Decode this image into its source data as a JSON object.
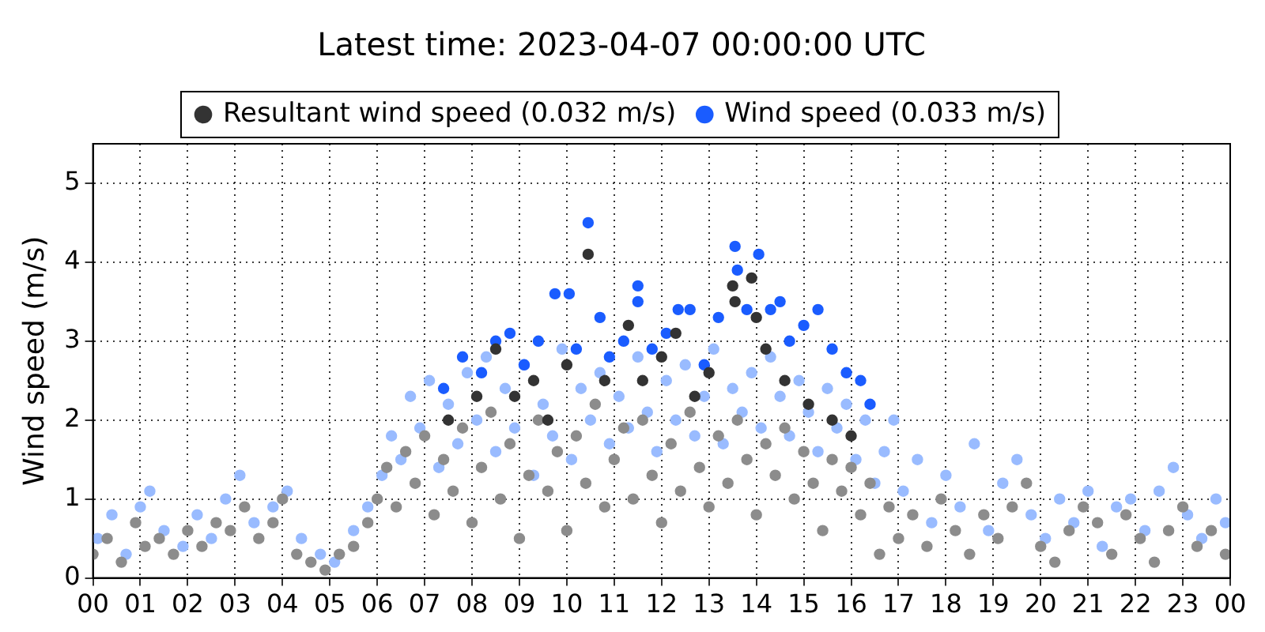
{
  "chart_data": {
    "type": "scatter",
    "title": "Latest time: 2023-04-07 00:00:00 UTC",
    "ylabel": "Wind speed (m/s)",
    "xlim": [
      0,
      24
    ],
    "xticks": [
      {
        "value": 0,
        "label": "00"
      },
      {
        "value": 1,
        "label": "01"
      },
      {
        "value": 2,
        "label": "02"
      },
      {
        "value": 3,
        "label": "03"
      },
      {
        "value": 4,
        "label": "04"
      },
      {
        "value": 5,
        "label": "05"
      },
      {
        "value": 6,
        "label": "06"
      },
      {
        "value": 7,
        "label": "07"
      },
      {
        "value": 8,
        "label": "08"
      },
      {
        "value": 9,
        "label": "09"
      },
      {
        "value": 10,
        "label": "10"
      },
      {
        "value": 11,
        "label": "11"
      },
      {
        "value": 12,
        "label": "12"
      },
      {
        "value": 13,
        "label": "13"
      },
      {
        "value": 14,
        "label": "14"
      },
      {
        "value": 15,
        "label": "15"
      },
      {
        "value": 16,
        "label": "16"
      },
      {
        "value": 17,
        "label": "17"
      },
      {
        "value": 18,
        "label": "18"
      },
      {
        "value": 19,
        "label": "19"
      },
      {
        "value": 20,
        "label": "20"
      },
      {
        "value": 21,
        "label": "21"
      },
      {
        "value": 22,
        "label": "22"
      },
      {
        "value": 23,
        "label": "23"
      },
      {
        "value": 24,
        "label": "00"
      }
    ],
    "ylim": [
      0,
      5.5
    ],
    "yticks": [
      0,
      1,
      2,
      3,
      4,
      5
    ],
    "grid": true,
    "legend": "top",
    "marker": "circle",
    "series": [
      {
        "color": "#99bbff",
        "x": [
          0.1,
          0.4,
          0.7,
          1.0,
          1.2,
          1.5,
          1.9,
          2.2,
          2.5,
          2.8,
          3.1,
          3.4,
          3.8,
          4.1,
          4.4,
          4.8,
          5.1,
          5.5,
          5.8,
          6.1,
          6.3,
          6.5,
          6.7,
          6.9,
          7.1,
          7.3,
          7.5,
          7.7,
          7.9,
          8.1,
          8.3,
          8.5,
          8.7,
          8.9,
          9.1,
          9.3,
          9.5,
          9.7,
          9.9,
          10.1,
          10.3,
          10.5,
          10.7,
          10.9,
          11.1,
          11.3,
          11.5,
          11.7,
          11.9,
          12.1,
          12.3,
          12.5,
          12.7,
          12.9,
          13.1,
          13.3,
          13.5,
          13.7,
          13.9,
          14.1,
          14.3,
          14.5,
          14.7,
          14.9,
          15.1,
          15.3,
          15.5,
          15.7,
          15.9,
          16.1,
          16.3,
          16.5,
          16.7,
          16.9,
          17.1,
          17.4,
          17.7,
          18.0,
          18.3,
          18.6,
          18.9,
          19.2,
          19.5,
          19.8,
          20.1,
          20.4,
          20.7,
          21.0,
          21.3,
          21.6,
          21.9,
          22.2,
          22.5,
          22.8,
          23.1,
          23.4,
          23.7,
          23.9
        ],
        "values": [
          0.5,
          0.8,
          0.3,
          0.9,
          1.1,
          0.6,
          0.4,
          0.8,
          0.5,
          1.0,
          1.3,
          0.7,
          0.9,
          1.1,
          0.5,
          0.3,
          0.2,
          0.6,
          0.9,
          1.3,
          1.8,
          1.5,
          2.3,
          1.9,
          2.5,
          1.4,
          2.2,
          1.7,
          2.6,
          2.0,
          2.8,
          1.6,
          2.4,
          1.9,
          2.7,
          1.3,
          2.2,
          1.8,
          2.9,
          1.5,
          2.4,
          2.0,
          2.6,
          1.7,
          2.3,
          1.9,
          2.8,
          2.1,
          1.6,
          2.5,
          2.0,
          2.7,
          1.8,
          2.3,
          2.9,
          1.7,
          2.4,
          2.1,
          2.6,
          1.9,
          2.8,
          2.3,
          1.8,
          2.5,
          2.1,
          1.6,
          2.4,
          1.9,
          2.2,
          1.5,
          2.0,
          1.2,
          1.6,
          2.0,
          1.1,
          1.5,
          0.7,
          1.3,
          0.9,
          1.7,
          0.6,
          1.2,
          1.5,
          0.8,
          0.5,
          1.0,
          0.7,
          1.1,
          0.4,
          0.9,
          1.0,
          0.6,
          1.1,
          1.4,
          0.8,
          0.5,
          1.0,
          0.7
        ]
      },
      {
        "color": "#8c8c8c",
        "x": [
          0.0,
          0.3,
          0.6,
          0.9,
          1.1,
          1.4,
          1.7,
          2.0,
          2.3,
          2.6,
          2.9,
          3.2,
          3.5,
          3.8,
          4.0,
          4.3,
          4.6,
          4.9,
          5.2,
          5.5,
          5.8,
          6.0,
          6.2,
          6.4,
          6.6,
          6.8,
          7.0,
          7.2,
          7.4,
          7.6,
          7.8,
          8.0,
          8.2,
          8.4,
          8.6,
          8.8,
          9.0,
          9.2,
          9.4,
          9.6,
          9.8,
          10.0,
          10.2,
          10.4,
          10.6,
          10.8,
          11.0,
          11.2,
          11.4,
          11.6,
          11.8,
          12.0,
          12.2,
          12.4,
          12.6,
          12.8,
          13.0,
          13.2,
          13.4,
          13.6,
          13.8,
          14.0,
          14.2,
          14.4,
          14.6,
          14.8,
          15.0,
          15.2,
          15.4,
          15.6,
          15.8,
          16.0,
          16.2,
          16.4,
          16.6,
          16.8,
          17.0,
          17.3,
          17.6,
          17.9,
          18.2,
          18.5,
          18.8,
          19.1,
          19.4,
          19.7,
          20.0,
          20.3,
          20.6,
          20.9,
          21.2,
          21.5,
          21.8,
          22.1,
          22.4,
          22.7,
          23.0,
          23.3,
          23.6,
          23.9
        ],
        "values": [
          0.3,
          0.5,
          0.2,
          0.7,
          0.4,
          0.5,
          0.3,
          0.6,
          0.4,
          0.7,
          0.6,
          0.9,
          0.5,
          0.7,
          1.0,
          0.3,
          0.2,
          0.1,
          0.3,
          0.4,
          0.7,
          1.0,
          1.4,
          0.9,
          1.6,
          1.2,
          1.8,
          0.8,
          1.5,
          1.1,
          1.9,
          0.7,
          1.4,
          2.1,
          1.0,
          1.7,
          0.5,
          1.3,
          2.0,
          1.1,
          1.6,
          0.6,
          1.8,
          1.2,
          2.2,
          0.9,
          1.5,
          1.9,
          1.0,
          2.0,
          1.3,
          0.7,
          1.7,
          1.1,
          2.1,
          1.4,
          0.9,
          1.8,
          1.2,
          2.0,
          1.5,
          0.8,
          1.7,
          1.3,
          1.9,
          1.0,
          1.6,
          1.2,
          0.6,
          1.5,
          1.1,
          1.4,
          0.8,
          1.2,
          0.3,
          0.9,
          0.5,
          0.8,
          0.4,
          1.0,
          0.6,
          0.3,
          0.8,
          0.5,
          0.9,
          1.2,
          0.4,
          0.2,
          0.6,
          0.9,
          0.7,
          0.3,
          0.8,
          0.5,
          0.2,
          0.6,
          0.9,
          0.4,
          0.6,
          0.3
        ]
      },
      {
        "name": "Wind speed (0.033 m/s)",
        "color": "#1a5cff",
        "x": [
          7.4,
          7.8,
          8.2,
          8.5,
          8.8,
          9.1,
          9.4,
          9.75,
          10.05,
          10.2,
          10.45,
          10.7,
          10.9,
          11.2,
          11.5,
          11.5,
          11.8,
          12.1,
          12.35,
          12.6,
          12.9,
          13.2,
          13.55,
          13.6,
          13.8,
          14.05,
          14.3,
          14.5,
          14.7,
          15.0,
          15.3,
          15.6,
          15.9,
          16.2,
          16.4
        ],
        "values": [
          2.4,
          2.8,
          2.6,
          3.0,
          3.1,
          2.7,
          3.0,
          3.6,
          3.6,
          2.9,
          4.5,
          3.3,
          2.8,
          3.0,
          3.7,
          3.5,
          2.9,
          3.1,
          3.4,
          3.4,
          2.7,
          3.3,
          4.2,
          3.9,
          3.4,
          4.1,
          3.4,
          3.5,
          3.0,
          3.2,
          3.4,
          2.9,
          2.6,
          2.5,
          2.2
        ]
      },
      {
        "name": "Resultant wind speed (0.032 m/s)",
        "color": "#333333",
        "x": [
          7.5,
          8.1,
          8.5,
          8.9,
          9.3,
          9.6,
          10.0,
          10.45,
          10.8,
          11.3,
          11.6,
          12.0,
          12.3,
          12.7,
          13.0,
          13.5,
          13.55,
          13.9,
          14.0,
          14.2,
          14.6,
          15.1,
          15.6,
          16.0
        ],
        "values": [
          2.0,
          2.3,
          2.9,
          2.3,
          2.5,
          2.0,
          2.7,
          4.1,
          2.5,
          3.2,
          2.5,
          2.8,
          3.1,
          2.3,
          2.6,
          3.7,
          3.5,
          3.8,
          3.3,
          2.9,
          2.5,
          2.2,
          2.0,
          1.8
        ]
      }
    ]
  }
}
